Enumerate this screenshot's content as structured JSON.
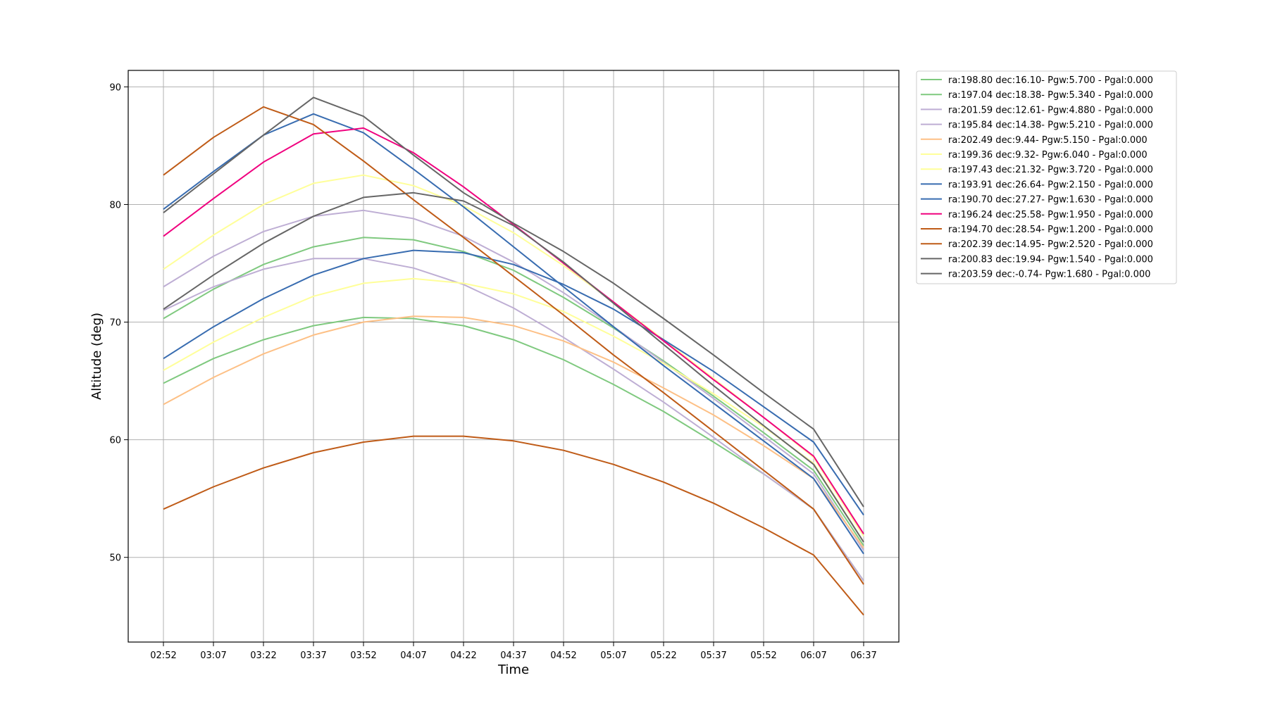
{
  "chart_data": {
    "type": "line",
    "title": "",
    "xlabel": "Time",
    "ylabel": "Altitude (deg)",
    "grid": true,
    "legend_position": "outside-top-right",
    "x": [
      "02:52",
      "03:07",
      "03:22",
      "03:37",
      "03:52",
      "04:07",
      "04:22",
      "04:37",
      "04:52",
      "05:07",
      "05:22",
      "05:37",
      "05:52",
      "06:07",
      "06:37"
    ],
    "ylim": [
      42.8,
      91.4
    ],
    "yticks": [
      50,
      60,
      70,
      80,
      90
    ],
    "series": [
      {
        "name": "ra:198.80 dec:16.10- Pgw:5.700 - Pgal:0.000",
        "color": "#7fc97f",
        "values": [
          70.3,
          72.8,
          74.9,
          76.4,
          77.2,
          77.0,
          76.0,
          74.4,
          72.1,
          69.5,
          66.7,
          63.7,
          60.6,
          57.4,
          51.0
        ]
      },
      {
        "name": "ra:197.04 dec:18.38- Pgw:5.340 - Pgal:0.000",
        "color": "#7fc97f",
        "values": [
          64.8,
          66.9,
          68.5,
          69.7,
          70.4,
          70.3,
          69.7,
          68.5,
          66.8,
          64.7,
          62.4,
          59.8,
          57.1,
          54.1,
          48.0
        ]
      },
      {
        "name": "ra:201.59 dec:12.61- Pgw:4.880 - Pgal:0.000",
        "color": "#beaed4",
        "values": [
          71.0,
          73.0,
          74.5,
          75.4,
          75.4,
          74.6,
          73.2,
          71.2,
          68.7,
          66.0,
          63.2,
          60.2,
          57.1,
          54.1,
          48.0
        ]
      },
      {
        "name": "ra:195.84 dec:14.38- Pgw:5.210 - Pgal:0.000",
        "color": "#beaed4",
        "values": [
          73.0,
          75.6,
          77.7,
          79.0,
          79.5,
          78.8,
          77.3,
          75.1,
          72.5,
          69.6,
          66.6,
          63.5,
          60.3,
          57.1,
          50.6
        ]
      },
      {
        "name": "ra:202.49 dec:9.44- Pgw:5.150 - Pgal:0.000",
        "color": "#fdc086",
        "values": [
          63.0,
          65.3,
          67.3,
          68.9,
          70.0,
          70.5,
          70.4,
          69.7,
          68.4,
          66.6,
          64.4,
          62.1,
          59.5,
          56.7,
          50.8
        ]
      },
      {
        "name": "ra:199.36 dec:9.32- Pgw:6.040 - Pgal:0.000",
        "color": "#ffff99",
        "values": [
          65.9,
          68.3,
          70.4,
          72.2,
          73.3,
          73.7,
          73.3,
          72.4,
          70.9,
          68.8,
          66.5,
          63.9,
          61.1,
          58.0,
          51.3
        ]
      },
      {
        "name": "ra:197.43 dec:21.32- Pgw:3.720 - Pgal:0.000",
        "color": "#ffff99",
        "values": [
          74.5,
          77.4,
          80.0,
          81.8,
          82.5,
          81.6,
          79.9,
          77.6,
          74.8,
          71.7,
          68.5,
          65.2,
          61.9,
          58.5,
          51.8
        ]
      },
      {
        "name": "ra:193.91 dec:26.64- Pgw:2.150 - Pgal:0.000",
        "color": "#386cb0",
        "values": [
          66.9,
          69.6,
          72.0,
          74.0,
          75.4,
          76.1,
          75.9,
          74.9,
          73.2,
          71.1,
          68.5,
          65.8,
          62.8,
          59.8,
          53.6
        ]
      },
      {
        "name": "ra:190.70 dec:27.27- Pgw:1.630 - Pgal:0.000",
        "color": "#386cb0",
        "values": [
          79.6,
          82.8,
          85.9,
          87.7,
          86.1,
          83.0,
          79.8,
          76.4,
          73.0,
          69.6,
          66.3,
          63.1,
          59.9,
          56.7,
          50.3
        ]
      },
      {
        "name": "ra:196.24 dec:25.58- Pgw:1.950 - Pgal:0.000",
        "color": "#f0027f",
        "values": [
          77.3,
          80.5,
          83.6,
          86.0,
          86.5,
          84.4,
          81.5,
          78.3,
          75.0,
          71.7,
          68.4,
          65.1,
          61.9,
          58.6,
          52.0
        ]
      },
      {
        "name": "ra:194.70 dec:28.54- Pgw:1.200 - Pgal:0.000",
        "color": "#bf5b17",
        "values": [
          82.5,
          85.7,
          88.3,
          86.8,
          83.7,
          80.4,
          77.2,
          73.9,
          70.6,
          67.2,
          64.0,
          60.7,
          57.4,
          54.1,
          47.7
        ]
      },
      {
        "name": "ra:202.39 dec:14.95- Pgw:2.520 - Pgal:0.000",
        "color": "#bf5b17",
        "values": [
          54.1,
          56.0,
          57.6,
          58.9,
          59.8,
          60.3,
          60.3,
          59.9,
          59.1,
          57.9,
          56.4,
          54.6,
          52.5,
          50.2,
          45.1
        ]
      },
      {
        "name": "ra:200.83 dec:19.94- Pgw:1.540 - Pgal:0.000",
        "color": "#666666",
        "values": [
          71.1,
          74.0,
          76.7,
          79.0,
          80.6,
          81.0,
          80.3,
          78.2,
          75.1,
          71.6,
          68.1,
          64.6,
          61.2,
          57.9,
          51.3
        ]
      },
      {
        "name": "ra:203.59 dec:-0.74- Pgw:1.680 - Pgal:0.000",
        "color": "#666666",
        "values": [
          79.3,
          82.6,
          85.9,
          89.1,
          87.5,
          84.2,
          81.0,
          78.4,
          76.0,
          73.3,
          70.3,
          67.2,
          64.0,
          60.9,
          54.3
        ]
      }
    ]
  }
}
